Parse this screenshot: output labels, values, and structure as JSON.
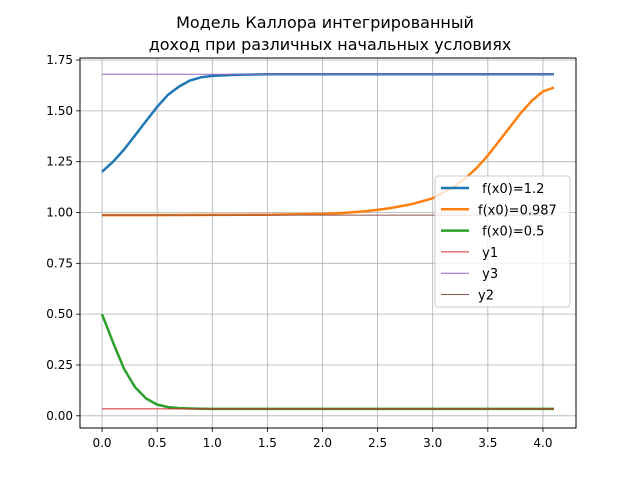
{
  "chart_data": {
    "type": "line",
    "title_line1": "Модель Каллора интегрированный",
    "title_line2": "доход при различных начальных условиях",
    "xlabel": "",
    "ylabel": "",
    "xlim": [
      -0.2,
      4.3
    ],
    "ylim": [
      -0.06,
      1.76
    ],
    "xticks": [
      {
        "value": 0.0,
        "label": "0.0"
      },
      {
        "value": 0.5,
        "label": "0.5"
      },
      {
        "value": 1.0,
        "label": "1.0"
      },
      {
        "value": 1.5,
        "label": "1.5"
      },
      {
        "value": 2.0,
        "label": "2.0"
      },
      {
        "value": 2.5,
        "label": "2.5"
      },
      {
        "value": 3.0,
        "label": "3.0"
      },
      {
        "value": 3.5,
        "label": "3.5"
      },
      {
        "value": 4.0,
        "label": "4.0"
      }
    ],
    "yticks": [
      {
        "value": 0.0,
        "label": "0.00"
      },
      {
        "value": 0.25,
        "label": "0.25"
      },
      {
        "value": 0.5,
        "label": "0.50"
      },
      {
        "value": 0.75,
        "label": "0.75"
      },
      {
        "value": 1.0,
        "label": "1.00"
      },
      {
        "value": 1.25,
        "label": "1.25"
      },
      {
        "value": 1.5,
        "label": "1.50"
      },
      {
        "value": 1.75,
        "label": "1.75"
      }
    ],
    "grid": true,
    "legend_position": "center-right",
    "series": [
      {
        "name": " f(x0)=1.2",
        "color": "#1f77b4",
        "width": "thick",
        "x": [
          0,
          0.1,
          0.2,
          0.3,
          0.4,
          0.5,
          0.6,
          0.7,
          0.8,
          0.9,
          1.0,
          1.2,
          1.5,
          2.0,
          2.5,
          3.0,
          3.5,
          4.1
        ],
        "y": [
          1.2,
          1.25,
          1.31,
          1.38,
          1.45,
          1.52,
          1.58,
          1.62,
          1.65,
          1.665,
          1.672,
          1.677,
          1.68,
          1.68,
          1.68,
          1.68,
          1.68,
          1.68
        ]
      },
      {
        "name": "f(x0)=0.987",
        "color": "#ff7f0e",
        "width": "thick",
        "x": [
          0,
          0.5,
          1.0,
          1.5,
          2.0,
          2.2,
          2.4,
          2.6,
          2.8,
          3.0,
          3.1,
          3.2,
          3.3,
          3.4,
          3.5,
          3.6,
          3.7,
          3.8,
          3.9,
          4.0,
          4.1
        ],
        "y": [
          0.987,
          0.987,
          0.988,
          0.989,
          0.993,
          0.998,
          1.007,
          1.02,
          1.04,
          1.07,
          1.1,
          1.13,
          1.17,
          1.22,
          1.28,
          1.35,
          1.42,
          1.49,
          1.55,
          1.595,
          1.615
        ]
      },
      {
        "name": " f(x0)=0.5",
        "color": "#2ca02c",
        "width": "thick",
        "x": [
          0,
          0.1,
          0.2,
          0.3,
          0.4,
          0.5,
          0.6,
          0.7,
          0.8,
          0.9,
          1.0,
          1.5,
          2.0,
          2.5,
          3.0,
          3.5,
          4.1
        ],
        "y": [
          0.5,
          0.36,
          0.23,
          0.14,
          0.085,
          0.055,
          0.043,
          0.038,
          0.036,
          0.035,
          0.034,
          0.034,
          0.034,
          0.034,
          0.034,
          0.034,
          0.034
        ]
      },
      {
        "name": " y1",
        "color": "#d62728",
        "width": "thin",
        "x": [
          0,
          4.1
        ],
        "y": [
          0.034,
          0.034
        ]
      },
      {
        "name": " y3",
        "color": "#9467bd",
        "width": "thin",
        "x": [
          0,
          4.1
        ],
        "y": [
          1.68,
          1.68
        ]
      },
      {
        "name": "y2",
        "color": "#8c564b",
        "width": "thin",
        "x": [
          0,
          4.1
        ],
        "y": [
          0.987,
          0.987
        ]
      }
    ]
  }
}
